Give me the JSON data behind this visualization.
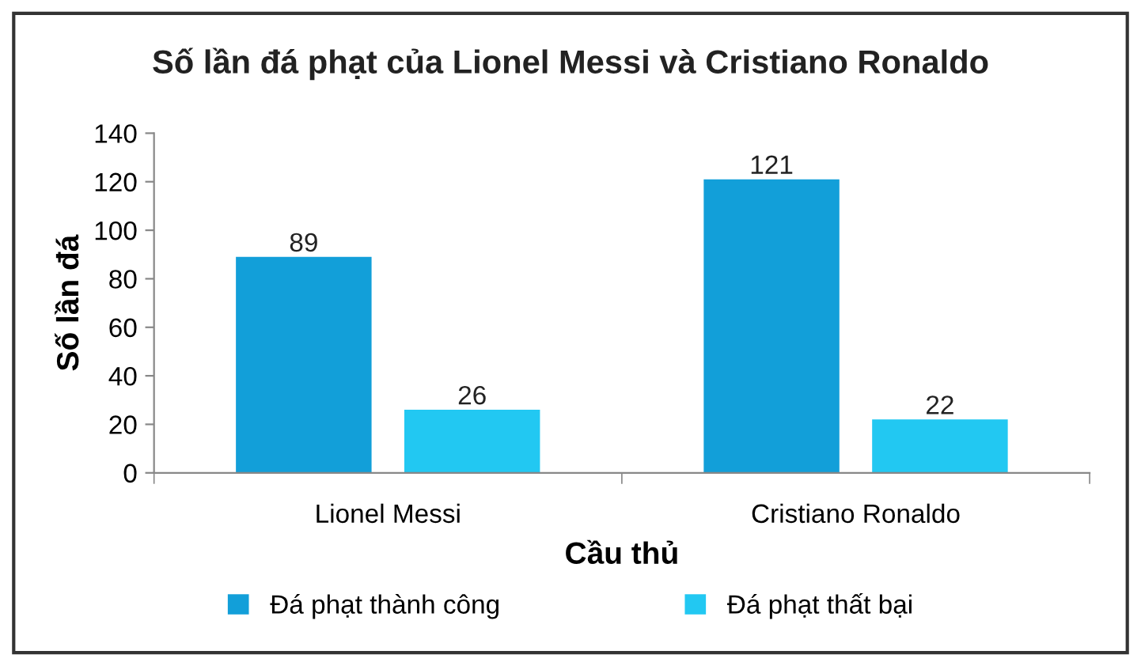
{
  "chart_data": {
    "type": "bar",
    "title": "Số lần đá phạt của Lionel Messi và Cristiano Ronaldo",
    "xlabel": "Cầu thủ",
    "ylabel": "Số lần đá",
    "categories": [
      "Lionel Messi",
      "Cristiano Ronaldo"
    ],
    "series": [
      {
        "name": "Đá phạt thành công",
        "color": "#129fd9",
        "values": [
          89,
          121
        ]
      },
      {
        "name": "Đá phạt thất bại",
        "color": "#22c8f2",
        "values": [
          26,
          22
        ]
      }
    ],
    "ylim": [
      0,
      140
    ],
    "yticks": [
      0,
      20,
      40,
      60,
      80,
      100,
      120,
      140
    ],
    "data_labels": true,
    "grid": false,
    "legend": "bottom"
  }
}
